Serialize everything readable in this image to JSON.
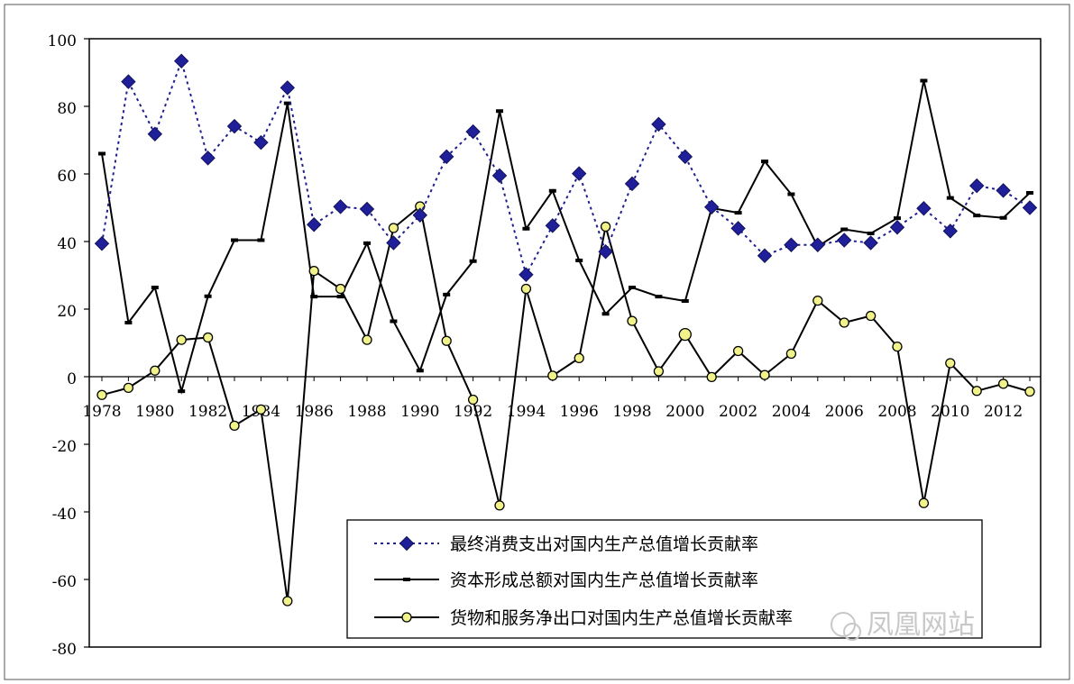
{
  "chart_data": {
    "type": "line",
    "title": "",
    "xlabel": "",
    "ylabel": "",
    "x": [
      1978,
      1979,
      1980,
      1981,
      1982,
      1983,
      1984,
      1985,
      1986,
      1987,
      1988,
      1989,
      1990,
      1991,
      1992,
      1993,
      1994,
      1995,
      1996,
      1997,
      1998,
      1999,
      2000,
      2001,
      2002,
      2003,
      2004,
      2005,
      2006,
      2007,
      2008,
      2009,
      2010,
      2011,
      2012,
      2013
    ],
    "x_tick_labels": [
      "1978",
      "1980",
      "1982",
      "1984",
      "1986",
      "1988",
      "1990",
      "1992",
      "1994",
      "1996",
      "1998",
      "2000",
      "2002",
      "2004",
      "2006",
      "2008",
      "2010",
      "2012"
    ],
    "ylim": [
      -80,
      100
    ],
    "y_ticks": [
      -80,
      -60,
      -40,
      -20,
      0,
      20,
      40,
      60,
      80,
      100
    ],
    "y_tick_labels": [
      "-80",
      "-60",
      "-40",
      "-20",
      "0",
      "20",
      "40",
      "60",
      "80",
      "100"
    ],
    "grid": false,
    "legend_position": "bottom-right",
    "series": [
      {
        "name": "最终消费支出对国内生产总值增长贡献率",
        "style": "dotted-diamond",
        "color": "#1f1f8f",
        "values": [
          39.4,
          87.3,
          71.8,
          93.4,
          64.7,
          74.1,
          69.3,
          85.5,
          45.0,
          50.3,
          49.6,
          39.6,
          47.8,
          65.1,
          72.5,
          59.5,
          30.2,
          44.7,
          60.1,
          37.0,
          57.1,
          74.7,
          65.1,
          50.2,
          43.9,
          35.8,
          39.0,
          39.0,
          40.4,
          39.6,
          44.2,
          49.8,
          43.1,
          56.5,
          55.1,
          50.0
        ]
      },
      {
        "name": "资本形成总额对国内生产总值增长贡献率",
        "style": "solid-dash-marker",
        "color": "#000000",
        "values": [
          66.0,
          16.0,
          26.4,
          -4.3,
          23.8,
          40.4,
          40.4,
          80.9,
          23.7,
          23.7,
          39.5,
          16.4,
          1.8,
          24.3,
          34.2,
          78.6,
          43.8,
          55.0,
          34.4,
          18.6,
          26.4,
          23.7,
          22.4,
          49.9,
          48.5,
          63.7,
          54.0,
          38.5,
          43.6,
          42.4,
          46.9,
          87.6,
          52.9,
          47.7,
          47.0,
          54.4
        ]
      },
      {
        "name": "货物和服务净出口对国内生产总值增长贡献率",
        "style": "solid-circle",
        "color": "#000000",
        "marker_fill": "#f2f28a",
        "values": [
          -5.4,
          -3.3,
          1.8,
          10.9,
          11.6,
          -14.5,
          -9.7,
          -66.4,
          31.3,
          26.0,
          10.9,
          44.0,
          50.4,
          10.6,
          -6.8,
          -38.1,
          26.0,
          0.3,
          5.5,
          44.4,
          16.5,
          1.6,
          12.5,
          -0.1,
          7.6,
          0.5,
          6.8,
          22.5,
          16.0,
          18.0,
          8.9,
          -37.4,
          4.0,
          -4.2,
          -2.1,
          -4.4
        ]
      }
    ]
  },
  "watermark": {
    "text": "凤凰网站"
  }
}
